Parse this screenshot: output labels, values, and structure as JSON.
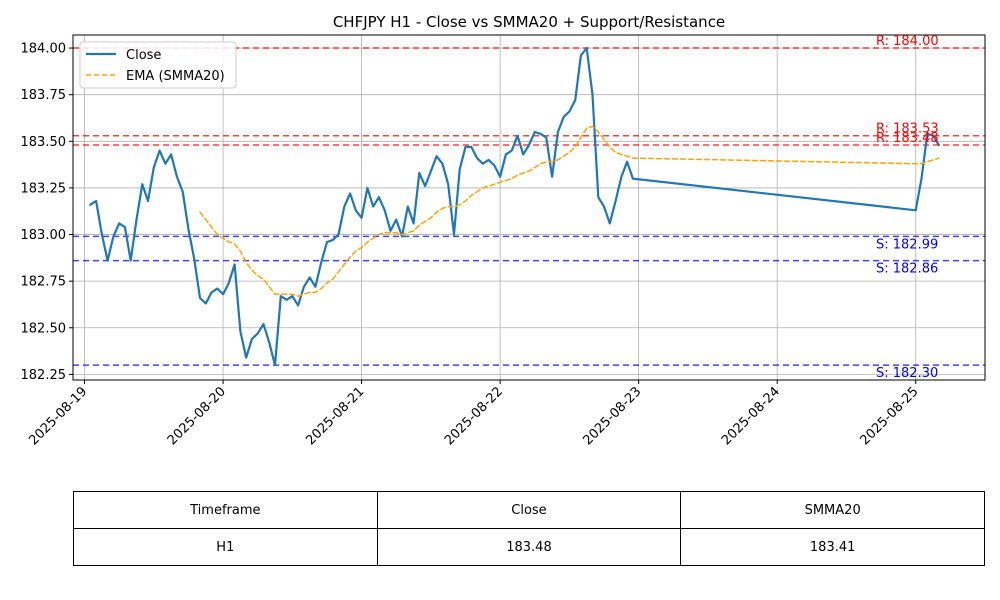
{
  "chart_data": {
    "type": "line",
    "title": "CHFJPY H1 - Close vs SMMA20 + Support/Resistance",
    "xlabel": "",
    "ylabel": "",
    "ylim": [
      182.22,
      184.07
    ],
    "xlim": [
      "2025-08-18T22:00",
      "2025-08-25T12:00"
    ],
    "x_ticks": [
      "2025-08-19",
      "2025-08-20",
      "2025-08-21",
      "2025-08-22",
      "2025-08-23",
      "2025-08-24",
      "2025-08-25"
    ],
    "y_ticks": [
      "182.25",
      "182.50",
      "182.75",
      "183.00",
      "183.25",
      "183.50",
      "183.75",
      "184.00"
    ],
    "y_tick_values": [
      182.25,
      182.5,
      182.75,
      183.0,
      183.25,
      183.5,
      183.75,
      184.0
    ],
    "grid": true,
    "legend_position": "top-left",
    "series": [
      {
        "name": "Close",
        "color": "#1f77b4",
        "style": "solid",
        "points": [
          [
            "2025-08-19T01:00",
            183.16
          ],
          [
            "2025-08-19T02:00",
            183.18
          ],
          [
            "2025-08-19T03:00",
            183.0
          ],
          [
            "2025-08-19T04:00",
            182.86
          ],
          [
            "2025-08-19T05:00",
            182.99
          ],
          [
            "2025-08-19T06:00",
            183.06
          ],
          [
            "2025-08-19T07:00",
            183.04
          ],
          [
            "2025-08-19T08:00",
            182.86
          ],
          [
            "2025-08-19T09:00",
            183.08
          ],
          [
            "2025-08-19T10:00",
            183.27
          ],
          [
            "2025-08-19T11:00",
            183.18
          ],
          [
            "2025-08-19T12:00",
            183.36
          ],
          [
            "2025-08-19T13:00",
            183.45
          ],
          [
            "2025-08-19T14:00",
            183.38
          ],
          [
            "2025-08-19T15:00",
            183.43
          ],
          [
            "2025-08-19T16:00",
            183.31
          ],
          [
            "2025-08-19T17:00",
            183.23
          ],
          [
            "2025-08-19T18:00",
            183.03
          ],
          [
            "2025-08-19T19:00",
            182.87
          ],
          [
            "2025-08-19T20:00",
            182.66
          ],
          [
            "2025-08-19T21:00",
            182.63
          ],
          [
            "2025-08-19T22:00",
            182.69
          ],
          [
            "2025-08-19T23:00",
            182.71
          ],
          [
            "2025-08-20T00:00",
            182.68
          ],
          [
            "2025-08-20T01:00",
            182.74
          ],
          [
            "2025-08-20T02:00",
            182.84
          ],
          [
            "2025-08-20T03:00",
            182.48
          ],
          [
            "2025-08-20T04:00",
            182.34
          ],
          [
            "2025-08-20T05:00",
            182.44
          ],
          [
            "2025-08-20T06:00",
            182.47
          ],
          [
            "2025-08-20T07:00",
            182.52
          ],
          [
            "2025-08-20T08:00",
            182.42
          ],
          [
            "2025-08-20T09:00",
            182.3
          ],
          [
            "2025-08-20T10:00",
            182.67
          ],
          [
            "2025-08-20T11:00",
            182.65
          ],
          [
            "2025-08-20T12:00",
            182.67
          ],
          [
            "2025-08-20T13:00",
            182.62
          ],
          [
            "2025-08-20T14:00",
            182.72
          ],
          [
            "2025-08-20T15:00",
            182.77
          ],
          [
            "2025-08-20T16:00",
            182.72
          ],
          [
            "2025-08-20T17:00",
            182.85
          ],
          [
            "2025-08-20T18:00",
            182.96
          ],
          [
            "2025-08-20T19:00",
            182.97
          ],
          [
            "2025-08-20T20:00",
            183.0
          ],
          [
            "2025-08-20T21:00",
            183.15
          ],
          [
            "2025-08-20T22:00",
            183.22
          ],
          [
            "2025-08-20T23:00",
            183.13
          ],
          [
            "2025-08-21T00:00",
            183.09
          ],
          [
            "2025-08-21T01:00",
            183.25
          ],
          [
            "2025-08-21T02:00",
            183.15
          ],
          [
            "2025-08-21T03:00",
            183.2
          ],
          [
            "2025-08-21T04:00",
            183.13
          ],
          [
            "2025-08-21T05:00",
            183.02
          ],
          [
            "2025-08-21T06:00",
            183.08
          ],
          [
            "2025-08-21T07:00",
            182.99
          ],
          [
            "2025-08-21T08:00",
            183.15
          ],
          [
            "2025-08-21T09:00",
            183.06
          ],
          [
            "2025-08-21T10:00",
            183.33
          ],
          [
            "2025-08-21T11:00",
            183.26
          ],
          [
            "2025-08-21T12:00",
            183.34
          ],
          [
            "2025-08-21T13:00",
            183.42
          ],
          [
            "2025-08-21T14:00",
            183.38
          ],
          [
            "2025-08-21T15:00",
            183.27
          ],
          [
            "2025-08-21T16:00",
            183.0
          ],
          [
            "2025-08-21T17:00",
            183.35
          ],
          [
            "2025-08-21T18:00",
            183.47
          ],
          [
            "2025-08-21T19:00",
            183.47
          ],
          [
            "2025-08-21T20:00",
            183.41
          ],
          [
            "2025-08-21T21:00",
            183.38
          ],
          [
            "2025-08-21T22:00",
            183.4
          ],
          [
            "2025-08-21T23:00",
            183.37
          ],
          [
            "2025-08-22T00:00",
            183.31
          ],
          [
            "2025-08-22T01:00",
            183.43
          ],
          [
            "2025-08-22T02:00",
            183.45
          ],
          [
            "2025-08-22T03:00",
            183.53
          ],
          [
            "2025-08-22T04:00",
            183.43
          ],
          [
            "2025-08-22T05:00",
            183.48
          ],
          [
            "2025-08-22T06:00",
            183.55
          ],
          [
            "2025-08-22T07:00",
            183.54
          ],
          [
            "2025-08-22T08:00",
            183.52
          ],
          [
            "2025-08-22T09:00",
            183.31
          ],
          [
            "2025-08-22T10:00",
            183.55
          ],
          [
            "2025-08-22T11:00",
            183.63
          ],
          [
            "2025-08-22T12:00",
            183.66
          ],
          [
            "2025-08-22T13:00",
            183.72
          ],
          [
            "2025-08-22T14:00",
            183.96
          ],
          [
            "2025-08-22T15:00",
            184.0
          ],
          [
            "2025-08-22T16:00",
            183.75
          ],
          [
            "2025-08-22T17:00",
            183.2
          ],
          [
            "2025-08-22T18:00",
            183.15
          ],
          [
            "2025-08-22T19:00",
            183.06
          ],
          [
            "2025-08-22T20:00",
            183.18
          ],
          [
            "2025-08-22T21:00",
            183.31
          ],
          [
            "2025-08-22T22:00",
            183.39
          ],
          [
            "2025-08-22T23:00",
            183.3
          ],
          [
            "2025-08-25T00:00",
            183.13
          ],
          [
            "2025-08-25T01:00",
            183.3
          ],
          [
            "2025-08-25T02:00",
            183.54
          ],
          [
            "2025-08-25T03:00",
            183.53
          ],
          [
            "2025-08-25T04:00",
            183.48
          ]
        ]
      },
      {
        "name": "EMA (SMMA20)",
        "color": "#ffa500",
        "style": "dashed",
        "points": [
          [
            "2025-08-19T20:00",
            183.12
          ],
          [
            "2025-08-19T21:00",
            183.08
          ],
          [
            "2025-08-19T22:00",
            183.04
          ],
          [
            "2025-08-19T23:00",
            183.0
          ],
          [
            "2025-08-20T00:00",
            182.98
          ],
          [
            "2025-08-20T01:00",
            182.96
          ],
          [
            "2025-08-20T02:00",
            182.95
          ],
          [
            "2025-08-20T03:00",
            182.91
          ],
          [
            "2025-08-20T04:00",
            182.85
          ],
          [
            "2025-08-20T05:00",
            182.81
          ],
          [
            "2025-08-20T06:00",
            182.78
          ],
          [
            "2025-08-20T07:00",
            182.76
          ],
          [
            "2025-08-20T08:00",
            182.72
          ],
          [
            "2025-08-20T09:00",
            182.68
          ],
          [
            "2025-08-20T10:00",
            182.68
          ],
          [
            "2025-08-20T11:00",
            182.68
          ],
          [
            "2025-08-20T12:00",
            182.68
          ],
          [
            "2025-08-20T13:00",
            182.67
          ],
          [
            "2025-08-20T14:00",
            182.68
          ],
          [
            "2025-08-20T15:00",
            182.69
          ],
          [
            "2025-08-20T16:00",
            182.69
          ],
          [
            "2025-08-20T17:00",
            182.71
          ],
          [
            "2025-08-20T18:00",
            182.74
          ],
          [
            "2025-08-20T19:00",
            182.76
          ],
          [
            "2025-08-20T20:00",
            182.8
          ],
          [
            "2025-08-20T21:00",
            182.84
          ],
          [
            "2025-08-20T22:00",
            182.88
          ],
          [
            "2025-08-20T23:00",
            182.91
          ],
          [
            "2025-08-21T00:00",
            182.93
          ],
          [
            "2025-08-21T01:00",
            182.96
          ],
          [
            "2025-08-21T02:00",
            182.98
          ],
          [
            "2025-08-21T03:00",
            183.0
          ],
          [
            "2025-08-21T04:00",
            183.01
          ],
          [
            "2025-08-21T05:00",
            183.01
          ],
          [
            "2025-08-21T06:00",
            183.01
          ],
          [
            "2025-08-21T07:00",
            183.0
          ],
          [
            "2025-08-21T08:00",
            183.01
          ],
          [
            "2025-08-21T09:00",
            183.02
          ],
          [
            "2025-08-21T10:00",
            183.05
          ],
          [
            "2025-08-21T11:00",
            183.07
          ],
          [
            "2025-08-21T12:00",
            183.09
          ],
          [
            "2025-08-21T13:00",
            183.12
          ],
          [
            "2025-08-21T14:00",
            183.14
          ],
          [
            "2025-08-21T15:00",
            183.15
          ],
          [
            "2025-08-21T16:00",
            183.15
          ],
          [
            "2025-08-21T17:00",
            183.16
          ],
          [
            "2025-08-21T18:00",
            183.18
          ],
          [
            "2025-08-21T19:00",
            183.21
          ],
          [
            "2025-08-21T20:00",
            183.23
          ],
          [
            "2025-08-21T21:00",
            183.25
          ],
          [
            "2025-08-21T22:00",
            183.26
          ],
          [
            "2025-08-21T23:00",
            183.27
          ],
          [
            "2025-08-22T00:00",
            183.28
          ],
          [
            "2025-08-22T01:00",
            183.29
          ],
          [
            "2025-08-22T02:00",
            183.3
          ],
          [
            "2025-08-22T03:00",
            183.32
          ],
          [
            "2025-08-22T04:00",
            183.33
          ],
          [
            "2025-08-22T05:00",
            183.34
          ],
          [
            "2025-08-22T06:00",
            183.36
          ],
          [
            "2025-08-22T07:00",
            183.38
          ],
          [
            "2025-08-22T08:00",
            183.39
          ],
          [
            "2025-08-22T09:00",
            183.39
          ],
          [
            "2025-08-22T10:00",
            183.4
          ],
          [
            "2025-08-22T11:00",
            183.42
          ],
          [
            "2025-08-22T12:00",
            183.44
          ],
          [
            "2025-08-22T13:00",
            183.47
          ],
          [
            "2025-08-22T14:00",
            183.52
          ],
          [
            "2025-08-22T15:00",
            183.57
          ],
          [
            "2025-08-22T16:00",
            183.58
          ],
          [
            "2025-08-22T17:00",
            183.55
          ],
          [
            "2025-08-22T18:00",
            183.51
          ],
          [
            "2025-08-22T19:00",
            183.47
          ],
          [
            "2025-08-22T20:00",
            183.44
          ],
          [
            "2025-08-22T21:00",
            183.43
          ],
          [
            "2025-08-22T22:00",
            183.42
          ],
          [
            "2025-08-22T23:00",
            183.41
          ],
          [
            "2025-08-25T00:00",
            183.38
          ],
          [
            "2025-08-25T01:00",
            183.38
          ],
          [
            "2025-08-25T02:00",
            183.39
          ],
          [
            "2025-08-25T03:00",
            183.4
          ],
          [
            "2025-08-25T04:00",
            183.41
          ]
        ]
      }
    ],
    "hlines": [
      {
        "label": "R: 184.00",
        "value": 184.0,
        "color": "#ff0000"
      },
      {
        "label": "R: 183.53",
        "value": 183.53,
        "color": "#ff0000"
      },
      {
        "label": "R: 183.48",
        "value": 183.48,
        "color": "#ff0000"
      },
      {
        "label": "S: 182.99",
        "value": 182.99,
        "color": "#0000ff"
      },
      {
        "label": "S: 182.86",
        "value": 182.86,
        "color": "#0000ff"
      },
      {
        "label": "S: 182.30",
        "value": 182.3,
        "color": "#0000ff"
      }
    ]
  },
  "table": {
    "headers": [
      "Timeframe",
      "Close",
      "SMMA20"
    ],
    "row": [
      "H1",
      "183.48",
      "183.41"
    ]
  }
}
